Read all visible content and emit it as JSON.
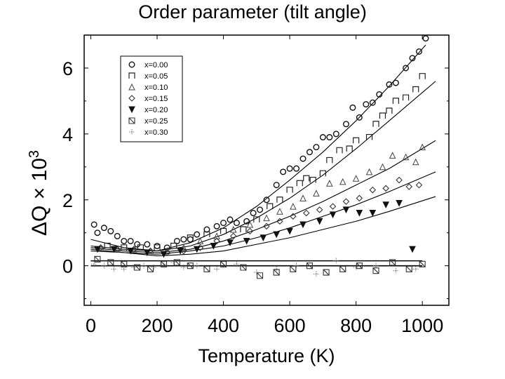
{
  "chart_data": {
    "type": "scatter",
    "title": "Order parameter (tilt angle)",
    "xlabel": "Temperature (K)",
    "ylabel": {
      "prefix": "ΔQ × 10",
      "exponent": "3"
    },
    "xlim": [
      -20,
      1080
    ],
    "ylim": [
      -1.2,
      7.0
    ],
    "xticks": [
      0,
      200,
      400,
      600,
      800,
      1000
    ],
    "yticks": [
      0,
      2,
      4,
      6
    ],
    "legend_position": "top-left",
    "grid": false,
    "series": [
      {
        "name": "x=0.00",
        "marker": "circle",
        "x": [
          10,
          20,
          40,
          60,
          80,
          100,
          120,
          140,
          170,
          200,
          230,
          260,
          280,
          300,
          320,
          350,
          380,
          400,
          420,
          440,
          470,
          490,
          510,
          530,
          560,
          580,
          600,
          620,
          640,
          660,
          680,
          700,
          720,
          740,
          770,
          790,
          810,
          830,
          850,
          870,
          900,
          920,
          950,
          970,
          990,
          1010
        ],
        "y": [
          1.25,
          1.0,
          1.15,
          1.05,
          0.9,
          0.75,
          0.75,
          0.65,
          0.65,
          0.6,
          0.55,
          0.75,
          0.8,
          0.8,
          0.95,
          1.1,
          1.2,
          1.3,
          1.4,
          1.3,
          1.35,
          1.6,
          1.7,
          2.0,
          2.45,
          2.85,
          2.95,
          2.95,
          3.25,
          3.45,
          3.6,
          3.9,
          3.9,
          4.0,
          4.3,
          4.8,
          4.5,
          4.9,
          4.95,
          5.2,
          5.5,
          5.55,
          6.0,
          6.3,
          6.5,
          6.9
        ]
      },
      {
        "name": "x=0.05",
        "marker": "square",
        "x": [
          50,
          100,
          150,
          200,
          250,
          300,
          350,
          400,
          460,
          500,
          540,
          570,
          600,
          630,
          650,
          670,
          700,
          720,
          750,
          780,
          800,
          840,
          860,
          880,
          900,
          920,
          950,
          980,
          1000
        ],
        "y": [
          0.6,
          0.55,
          0.55,
          0.55,
          0.6,
          0.85,
          0.95,
          1.05,
          1.1,
          1.4,
          1.8,
          2.0,
          2.3,
          2.5,
          2.65,
          2.6,
          2.8,
          3.2,
          3.5,
          3.55,
          3.8,
          3.9,
          4.3,
          4.55,
          4.7,
          5.0,
          5.1,
          5.35,
          5.75
        ]
      },
      {
        "name": "x=0.10",
        "marker": "triangle-up",
        "x": [
          30,
          80,
          130,
          180,
          230,
          280,
          330,
          380,
          430,
          480,
          530,
          570,
          610,
          640,
          680,
          720,
          760,
          800,
          840,
          880,
          910,
          950,
          980,
          1000
        ],
        "y": [
          0.55,
          0.5,
          0.5,
          0.45,
          0.45,
          0.55,
          0.75,
          0.9,
          1.1,
          1.25,
          1.45,
          1.65,
          1.8,
          2.05,
          2.2,
          2.5,
          2.55,
          2.65,
          2.85,
          3.0,
          3.35,
          3.3,
          3.15,
          3.6
        ]
      },
      {
        "name": "x=0.15",
        "marker": "diamond",
        "x": [
          30,
          80,
          130,
          180,
          230,
          280,
          330,
          380,
          430,
          480,
          530,
          570,
          610,
          650,
          690,
          730,
          770,
          810,
          850,
          890,
          930,
          960,
          990
        ],
        "y": [
          0.55,
          0.5,
          0.5,
          0.45,
          0.4,
          0.45,
          0.55,
          0.75,
          0.9,
          1.05,
          1.2,
          1.35,
          1.5,
          1.6,
          1.7,
          1.8,
          1.95,
          2.05,
          2.3,
          2.35,
          2.6,
          2.4,
          2.45
        ]
      },
      {
        "name": "x=0.20",
        "marker": "triangle-down",
        "x": [
          20,
          70,
          120,
          170,
          220,
          270,
          320,
          370,
          420,
          470,
          520,
          560,
          600,
          640,
          690,
          730,
          770,
          810,
          850,
          890,
          930,
          970
        ],
        "y": [
          0.5,
          0.5,
          0.45,
          0.4,
          0.35,
          0.45,
          0.5,
          0.6,
          0.7,
          0.75,
          0.85,
          0.95,
          1.05,
          1.25,
          1.35,
          1.55,
          1.7,
          1.6,
          1.6,
          1.85,
          1.9,
          0.5
        ]
      },
      {
        "name": "x=0.25",
        "marker": "square-x",
        "x": [
          20,
          60,
          100,
          140,
          180,
          220,
          260,
          300,
          350,
          400,
          460,
          510,
          560,
          610,
          660,
          710,
          760,
          810,
          860,
          910,
          960,
          1000
        ],
        "y": [
          0.2,
          0.1,
          0.05,
          -0.05,
          -0.1,
          0.05,
          0.1,
          0.0,
          -0.1,
          0.05,
          -0.05,
          -0.3,
          -0.2,
          -0.1,
          0.0,
          -0.2,
          -0.1,
          0.0,
          -0.15,
          0.1,
          -0.1,
          0.05
        ]
      },
      {
        "name": "x=0.30",
        "marker": "cross-dot",
        "x": [
          10,
          40,
          70,
          100,
          130,
          160,
          190,
          220,
          250,
          280,
          320,
          380,
          440,
          500,
          560,
          620,
          680,
          740,
          800,
          860,
          920,
          980
        ],
        "y": [
          0.05,
          0.0,
          -0.1,
          -0.1,
          -0.05,
          0.0,
          -0.05,
          0.05,
          0.1,
          -0.05,
          0.0,
          -0.1,
          0.05,
          -0.2,
          -0.1,
          0.0,
          -0.25,
          0.15,
          -0.05,
          0.0,
          -0.15,
          -0.1
        ]
      }
    ],
    "fit_lines": [
      {
        "x": [
          0,
          100,
          200,
          300,
          400,
          500,
          600,
          700,
          800,
          900,
          1010
        ],
        "y": [
          0.8,
          0.55,
          0.45,
          0.7,
          1.15,
          1.8,
          2.6,
          3.45,
          4.4,
          5.45,
          6.7
        ]
      },
      {
        "x": [
          0,
          100,
          200,
          300,
          400,
          500,
          600,
          700,
          800,
          900,
          1040
        ],
        "y": [
          0.6,
          0.5,
          0.45,
          0.6,
          0.95,
          1.45,
          2.05,
          2.75,
          3.55,
          4.4,
          5.6
        ]
      },
      {
        "x": [
          0,
          100,
          200,
          300,
          400,
          500,
          600,
          700,
          800,
          900,
          1040
        ],
        "y": [
          0.55,
          0.45,
          0.4,
          0.5,
          0.75,
          1.1,
          1.5,
          1.95,
          2.45,
          2.95,
          3.8
        ]
      },
      {
        "x": [
          0,
          100,
          200,
          300,
          400,
          500,
          600,
          700,
          800,
          900,
          1040
        ],
        "y": [
          0.5,
          0.4,
          0.35,
          0.45,
          0.6,
          0.85,
          1.15,
          1.5,
          1.85,
          2.25,
          2.85
        ]
      },
      {
        "x": [
          0,
          100,
          200,
          300,
          400,
          500,
          600,
          700,
          800,
          900,
          1040
        ],
        "y": [
          0.45,
          0.4,
          0.3,
          0.35,
          0.45,
          0.65,
          0.85,
          1.1,
          1.35,
          1.65,
          2.1
        ]
      },
      {
        "x": [
          0,
          1000
        ],
        "y": [
          0.15,
          0.15
        ]
      },
      {
        "x": [
          0,
          1000
        ],
        "y": [
          0.0,
          0.0
        ]
      }
    ]
  }
}
